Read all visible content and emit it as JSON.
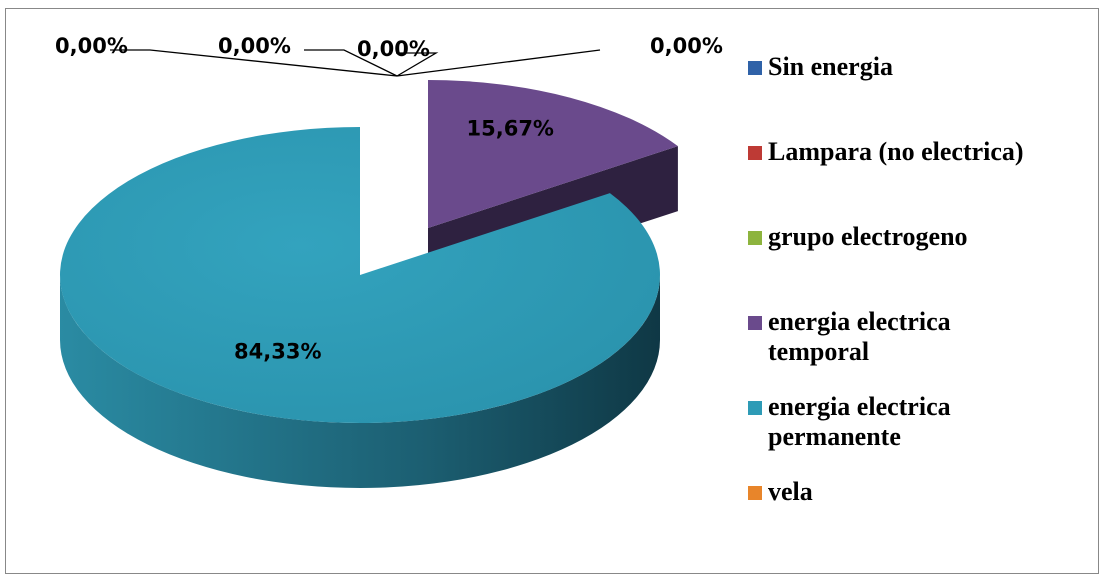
{
  "chart_data": {
    "type": "pie",
    "categories": [
      "Sin energia",
      "Lampara (no electrica)",
      "grupo electrogeno",
      "energia electrica temporal",
      "energia electrica permanente",
      "vela"
    ],
    "values": [
      0,
      0,
      0,
      15.67,
      84.33,
      0
    ],
    "value_labels": [
      "0,00%",
      "0,00%",
      "0,00%",
      "15,67%",
      "84,33%",
      "0,00%"
    ],
    "colors": [
      "#2f62a8",
      "#be3a35",
      "#8db43e",
      "#6a4a8c",
      "#2e9bb6",
      "#e8852a"
    ],
    "legend": "right"
  }
}
